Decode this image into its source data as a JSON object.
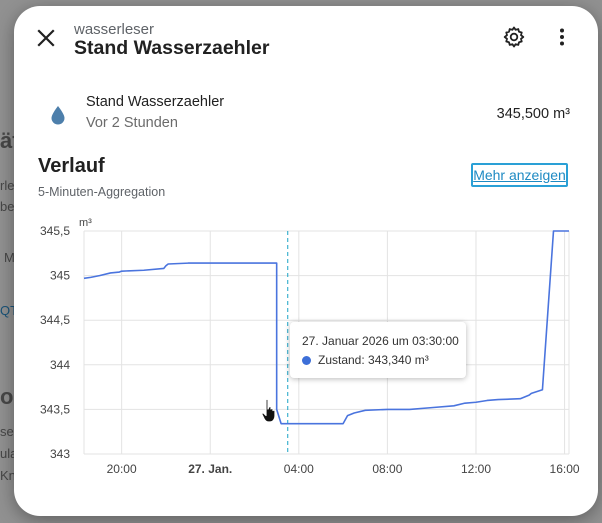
{
  "background": {
    "fragments": [
      "ät",
      "rle",
      "bet",
      "M",
      "QT",
      "or",
      "se",
      "ula",
      "Kno"
    ]
  },
  "dialog": {
    "entity_id_short": "wasserleser",
    "title": "Stand Wasserzaehler",
    "icons": {
      "close": "close-icon",
      "settings": "gear-icon",
      "more": "more-vert-icon",
      "entity": "water-drop-icon"
    }
  },
  "entity": {
    "name": "Stand Wasserzaehler",
    "last_changed": "Vor 2 Stunden",
    "state": "345,500 m³"
  },
  "history": {
    "title": "Verlauf",
    "subtitle": "5-Minuten-Aggregation",
    "more_link": "Mehr anzeigen"
  },
  "chart_data": {
    "type": "line",
    "unit_label": "m³",
    "y_ticks": [
      "345,5",
      "345",
      "344,5",
      "344",
      "343,5",
      "343"
    ],
    "x_ticks": [
      "20:00",
      "27. Jan.",
      "04:00",
      "08:00",
      "12:00",
      "16:00"
    ],
    "ylim": [
      343,
      345.5
    ],
    "xlim_hours": [
      18.3,
      40.2
    ],
    "grid": true,
    "colors": {
      "line": "#4a74de",
      "grid": "#e3e3e3",
      "hover": "#1ba3c6"
    },
    "series": [
      {
        "x_hours": [
          18.3,
          18.6,
          19.0,
          19.5,
          19.9,
          20.0,
          21.0,
          21.9,
          22.0,
          22.1,
          23.0,
          24.0,
          25.0,
          26.0,
          27.0,
          27.0,
          27.2,
          29.0,
          30.0,
          30.2,
          30.5,
          31.0,
          32.0,
          33.0,
          34.0,
          35.0,
          35.5,
          36.0,
          36.5,
          37.0,
          38.0,
          38.4,
          38.5,
          39.0,
          39.5,
          40.2
        ],
        "values": [
          344.97,
          344.98,
          345.0,
          345.03,
          345.04,
          345.05,
          345.06,
          345.08,
          345.11,
          345.13,
          345.14,
          345.14,
          345.14,
          345.14,
          345.14,
          343.5,
          343.34,
          343.34,
          343.34,
          343.43,
          343.46,
          343.49,
          343.5,
          343.5,
          343.52,
          343.54,
          343.57,
          343.58,
          343.6,
          343.61,
          343.62,
          343.66,
          343.68,
          343.72,
          345.5,
          345.5
        ]
      }
    ],
    "hover": {
      "x_hours": 27.5,
      "time_label": "27. Januar 2026 um 03:30:00",
      "series_label": "Zustand: 343,340 m³"
    }
  }
}
